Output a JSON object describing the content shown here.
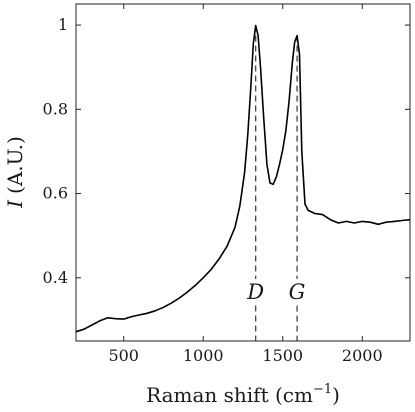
{
  "chart_data": {
    "type": "line",
    "title": "",
    "xlabel": "Raman shift (cm",
    "xlabel_exponent": "−1",
    "xlabel_close": ")",
    "ylabel_symbol": "I",
    "ylabel_unit": "(A.U.)",
    "xlim": [
      200,
      2300
    ],
    "ylim": [
      0.25,
      1.05
    ],
    "xticks": [
      500,
      1000,
      1500,
      2000
    ],
    "xtick_labels": [
      "500",
      "1000",
      "1500",
      "2000"
    ],
    "yticks": [
      0.4,
      0.6,
      0.8,
      1.0
    ],
    "ytick_labels": [
      "0.4",
      "0.6",
      "0.8",
      "1"
    ],
    "grid": false,
    "series": [
      {
        "color": "#000000",
        "x": [
          200,
          250,
          300,
          350,
          400,
          450,
          500,
          550,
          600,
          650,
          700,
          750,
          800,
          850,
          900,
          950,
          1000,
          1050,
          1100,
          1150,
          1200,
          1230,
          1260,
          1280,
          1300,
          1315,
          1330,
          1345,
          1360,
          1380,
          1400,
          1420,
          1440,
          1460,
          1480,
          1500,
          1520,
          1540,
          1560,
          1575,
          1590,
          1605,
          1620,
          1640,
          1660,
          1700,
          1750,
          1800,
          1850,
          1900,
          1950,
          2000,
          2050,
          2100,
          2150,
          2200,
          2250,
          2300
        ],
        "y": [
          0.272,
          0.278,
          0.288,
          0.298,
          0.305,
          0.303,
          0.302,
          0.308,
          0.312,
          0.316,
          0.322,
          0.33,
          0.34,
          0.352,
          0.366,
          0.382,
          0.4,
          0.42,
          0.445,
          0.475,
          0.52,
          0.57,
          0.65,
          0.74,
          0.86,
          0.955,
          0.999,
          0.975,
          0.9,
          0.78,
          0.67,
          0.625,
          0.622,
          0.64,
          0.67,
          0.705,
          0.75,
          0.82,
          0.91,
          0.96,
          0.975,
          0.93,
          0.7,
          0.575,
          0.56,
          0.553,
          0.55,
          0.538,
          0.53,
          0.534,
          0.53,
          0.534,
          0.532,
          0.527,
          0.532,
          0.534,
          0.536,
          0.538
        ]
      }
    ],
    "annotations": [
      {
        "label": "D",
        "x": 1330
      },
      {
        "label": "G",
        "x": 1590
      }
    ]
  }
}
